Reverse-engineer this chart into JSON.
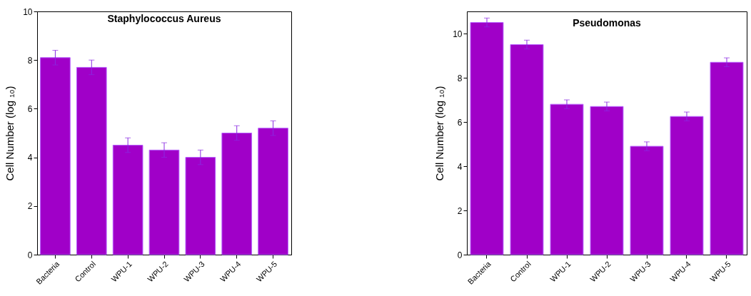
{
  "chart_data": [
    {
      "type": "bar",
      "title": "Staphylococcus Aureus",
      "ylabel": "Cell Number (log ₁₀)",
      "categories": [
        "Bacteria",
        "Control",
        "WPU-1",
        "WPU-2",
        "WPU-3",
        "WPU-4",
        "WPU-5"
      ],
      "values": [
        8.1,
        7.7,
        4.5,
        4.3,
        4.0,
        5.0,
        5.2
      ],
      "errors": [
        0.3,
        0.3,
        0.3,
        0.3,
        0.3,
        0.3,
        0.3
      ],
      "color": "#a000c8",
      "ylim": [
        0,
        10
      ],
      "yticks": [
        0,
        2,
        4,
        6,
        8,
        10
      ],
      "grid": false
    },
    {
      "type": "bar",
      "title": "Pseudomonas",
      "ylabel": "Cell Number (log ₁₀)",
      "categories": [
        "Bacteria",
        "Control",
        "WPU-1",
        "WPU-2",
        "WPU-3",
        "WPU-4",
        "WPU-5"
      ],
      "values": [
        10.5,
        9.5,
        6.8,
        6.7,
        4.9,
        6.25,
        8.7
      ],
      "errors": [
        0.2,
        0.2,
        0.2,
        0.2,
        0.2,
        0.2,
        0.2
      ],
      "color": "#a000c8",
      "ylim": [
        0,
        11
      ],
      "yticks": [
        0,
        2,
        4,
        6,
        8,
        10
      ],
      "grid": false
    }
  ]
}
